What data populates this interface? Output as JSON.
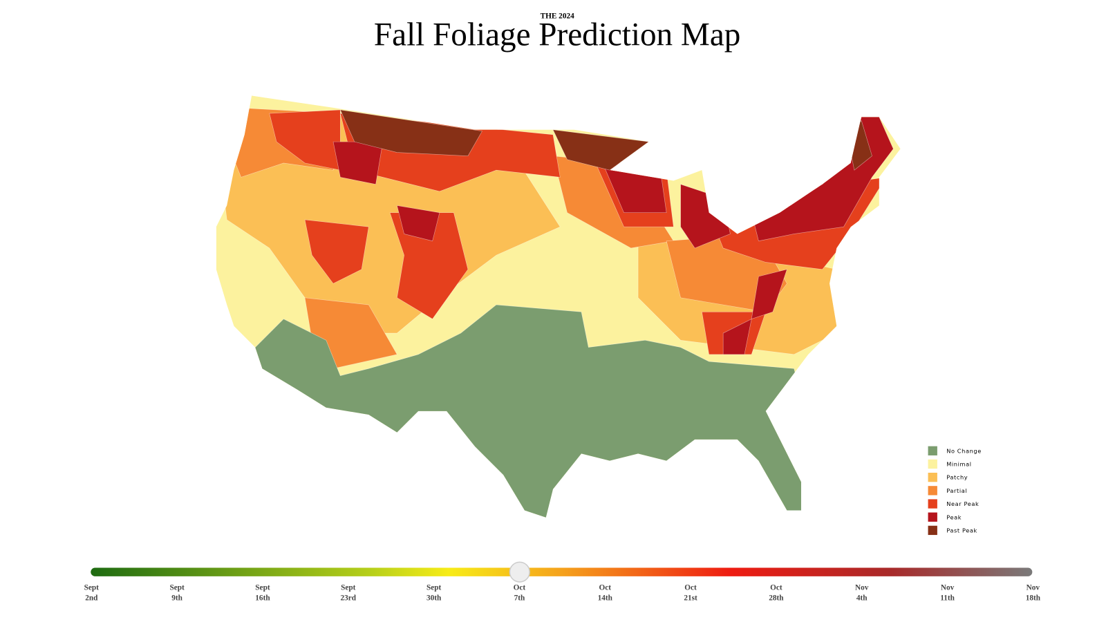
{
  "header": {
    "kicker": "THE 2024",
    "title": "Fall Foliage Prediction Map"
  },
  "legend": {
    "items": [
      {
        "label": "No Change",
        "color": "#7b9d6f"
      },
      {
        "label": "Minimal",
        "color": "#fcf29e"
      },
      {
        "label": "Patchy",
        "color": "#fbbf55"
      },
      {
        "label": "Partial",
        "color": "#f68a36"
      },
      {
        "label": "Near Peak",
        "color": "#e5401d"
      },
      {
        "label": "Peak",
        "color": "#b5141c"
      },
      {
        "label": "Past Peak",
        "color": "#873016"
      }
    ]
  },
  "timeline": {
    "labels": [
      {
        "month": "Sept",
        "day": "2nd"
      },
      {
        "month": "Sept",
        "day": "9th"
      },
      {
        "month": "Sept",
        "day": "16th"
      },
      {
        "month": "Sept",
        "day": "23rd"
      },
      {
        "month": "Sept",
        "day": "30th"
      },
      {
        "month": "Oct",
        "day": "7th"
      },
      {
        "month": "Oct",
        "day": "14th"
      },
      {
        "month": "Oct",
        "day": "21st"
      },
      {
        "month": "Oct",
        "day": "28th"
      },
      {
        "month": "Nov",
        "day": "4th"
      },
      {
        "month": "Nov",
        "day": "11th"
      },
      {
        "month": "Nov",
        "day": "18th"
      }
    ]
  }
}
